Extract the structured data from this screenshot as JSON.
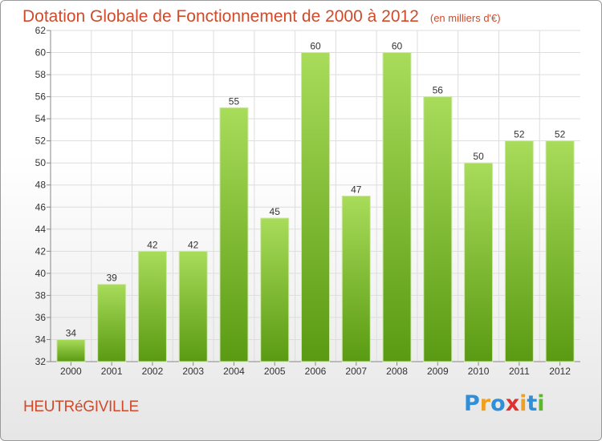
{
  "title": "Dotation Globale de Fonctionnement de 2000 à 2012",
  "unit": "(en milliers d'€)",
  "commune": "HEUTRéGIVILLE",
  "logo": {
    "letters": [
      "P",
      "r",
      "o",
      "x",
      "i",
      "t",
      "i"
    ],
    "colors": [
      "#2f8fd8",
      "#f0a020",
      "#2f8fd8",
      "#e03030",
      "#f0a020",
      "#2f8fd8",
      "#5cb82c"
    ]
  },
  "colors": {
    "bar_top": "#a8dc5a",
    "bar_bottom": "#5a9a12",
    "text": "#d14a2a",
    "grid": "#dddddd"
  },
  "chart_data": {
    "type": "bar",
    "categories": [
      "2000",
      "2001",
      "2002",
      "2003",
      "2004",
      "2005",
      "2006",
      "2007",
      "2008",
      "2009",
      "2010",
      "2011",
      "2012"
    ],
    "values": [
      34,
      39,
      42,
      42,
      55,
      45,
      60,
      47,
      60,
      56,
      50,
      52,
      52
    ],
    "ylim": [
      32,
      62
    ],
    "yticks": [
      32,
      34,
      36,
      38,
      40,
      42,
      44,
      46,
      48,
      50,
      52,
      54,
      56,
      58,
      60,
      62
    ],
    "grid": true
  }
}
